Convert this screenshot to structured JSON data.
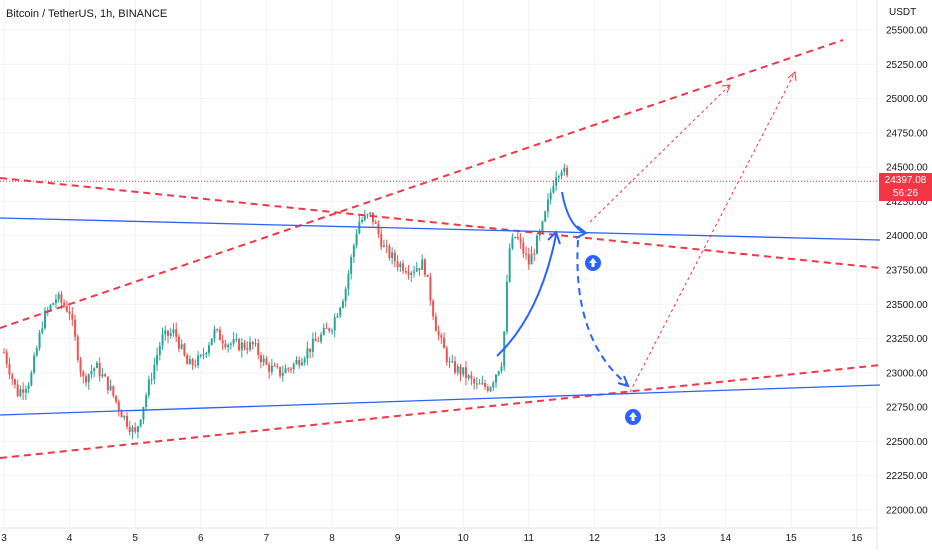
{
  "header": {
    "title": "Bitcoin / TetherUS, 1h, BINANCE",
    "currency": "USDT"
  },
  "price_tag": {
    "price": "24397.08",
    "countdown": "56:26"
  },
  "colors": {
    "bull": "#26a69a",
    "bear": "#ef5350",
    "trend_red": "#f23645",
    "trend_blue": "#2962ff",
    "grid": "#f0f3fa"
  },
  "chart_data": {
    "type": "candlestick",
    "x_ticks": [
      "3",
      "4",
      "5",
      "6",
      "7",
      "8",
      "9",
      "10",
      "11",
      "12",
      "13",
      "14",
      "15",
      "16"
    ],
    "y_ticks": [
      "25500.00",
      "25250.00",
      "25000.00",
      "24750.00",
      "24500.00",
      "24250.00",
      "24000.00",
      "23750.00",
      "23500.00",
      "23250.00",
      "23000.00",
      "22750.00",
      "22500.00",
      "22250.00",
      "22000.00"
    ],
    "ylim": [
      21950,
      25580
    ],
    "current_price": 24397.08,
    "ohlc_anchors": [
      [
        3.0,
        23150
      ],
      [
        3.2,
        22850
      ],
      [
        3.4,
        22950
      ],
      [
        3.6,
        23400
      ],
      [
        3.8,
        23550
      ],
      [
        4.0,
        23450
      ],
      [
        4.2,
        22950
      ],
      [
        4.4,
        23050
      ],
      [
        4.6,
        22900
      ],
      [
        4.8,
        22700
      ],
      [
        5.0,
        22550
      ],
      [
        5.2,
        22900
      ],
      [
        5.4,
        23250
      ],
      [
        5.6,
        23300
      ],
      [
        5.8,
        23050
      ],
      [
        6.0,
        23100
      ],
      [
        6.2,
        23300
      ],
      [
        6.4,
        23220
      ],
      [
        6.6,
        23200
      ],
      [
        6.8,
        23200
      ],
      [
        7.0,
        23050
      ],
      [
        7.2,
        23000
      ],
      [
        7.4,
        23050
      ],
      [
        7.6,
        23150
      ],
      [
        7.8,
        23250
      ],
      [
        8.0,
        23350
      ],
      [
        8.2,
        23600
      ],
      [
        8.4,
        24100
      ],
      [
        8.6,
        24150
      ],
      [
        8.8,
        23900
      ],
      [
        9.0,
        23800
      ],
      [
        9.2,
        23750
      ],
      [
        9.4,
        23800
      ],
      [
        9.6,
        23300
      ],
      [
        9.8,
        23050
      ],
      [
        10.0,
        23000
      ],
      [
        10.2,
        22900
      ],
      [
        10.4,
        22900
      ],
      [
        10.6,
        23100
      ],
      [
        10.7,
        23900
      ],
      [
        10.8,
        24000
      ],
      [
        11.0,
        23800
      ],
      [
        11.2,
        24050
      ],
      [
        11.4,
        24450
      ],
      [
        11.5,
        24500
      ],
      [
        11.6,
        24400
      ]
    ]
  }
}
